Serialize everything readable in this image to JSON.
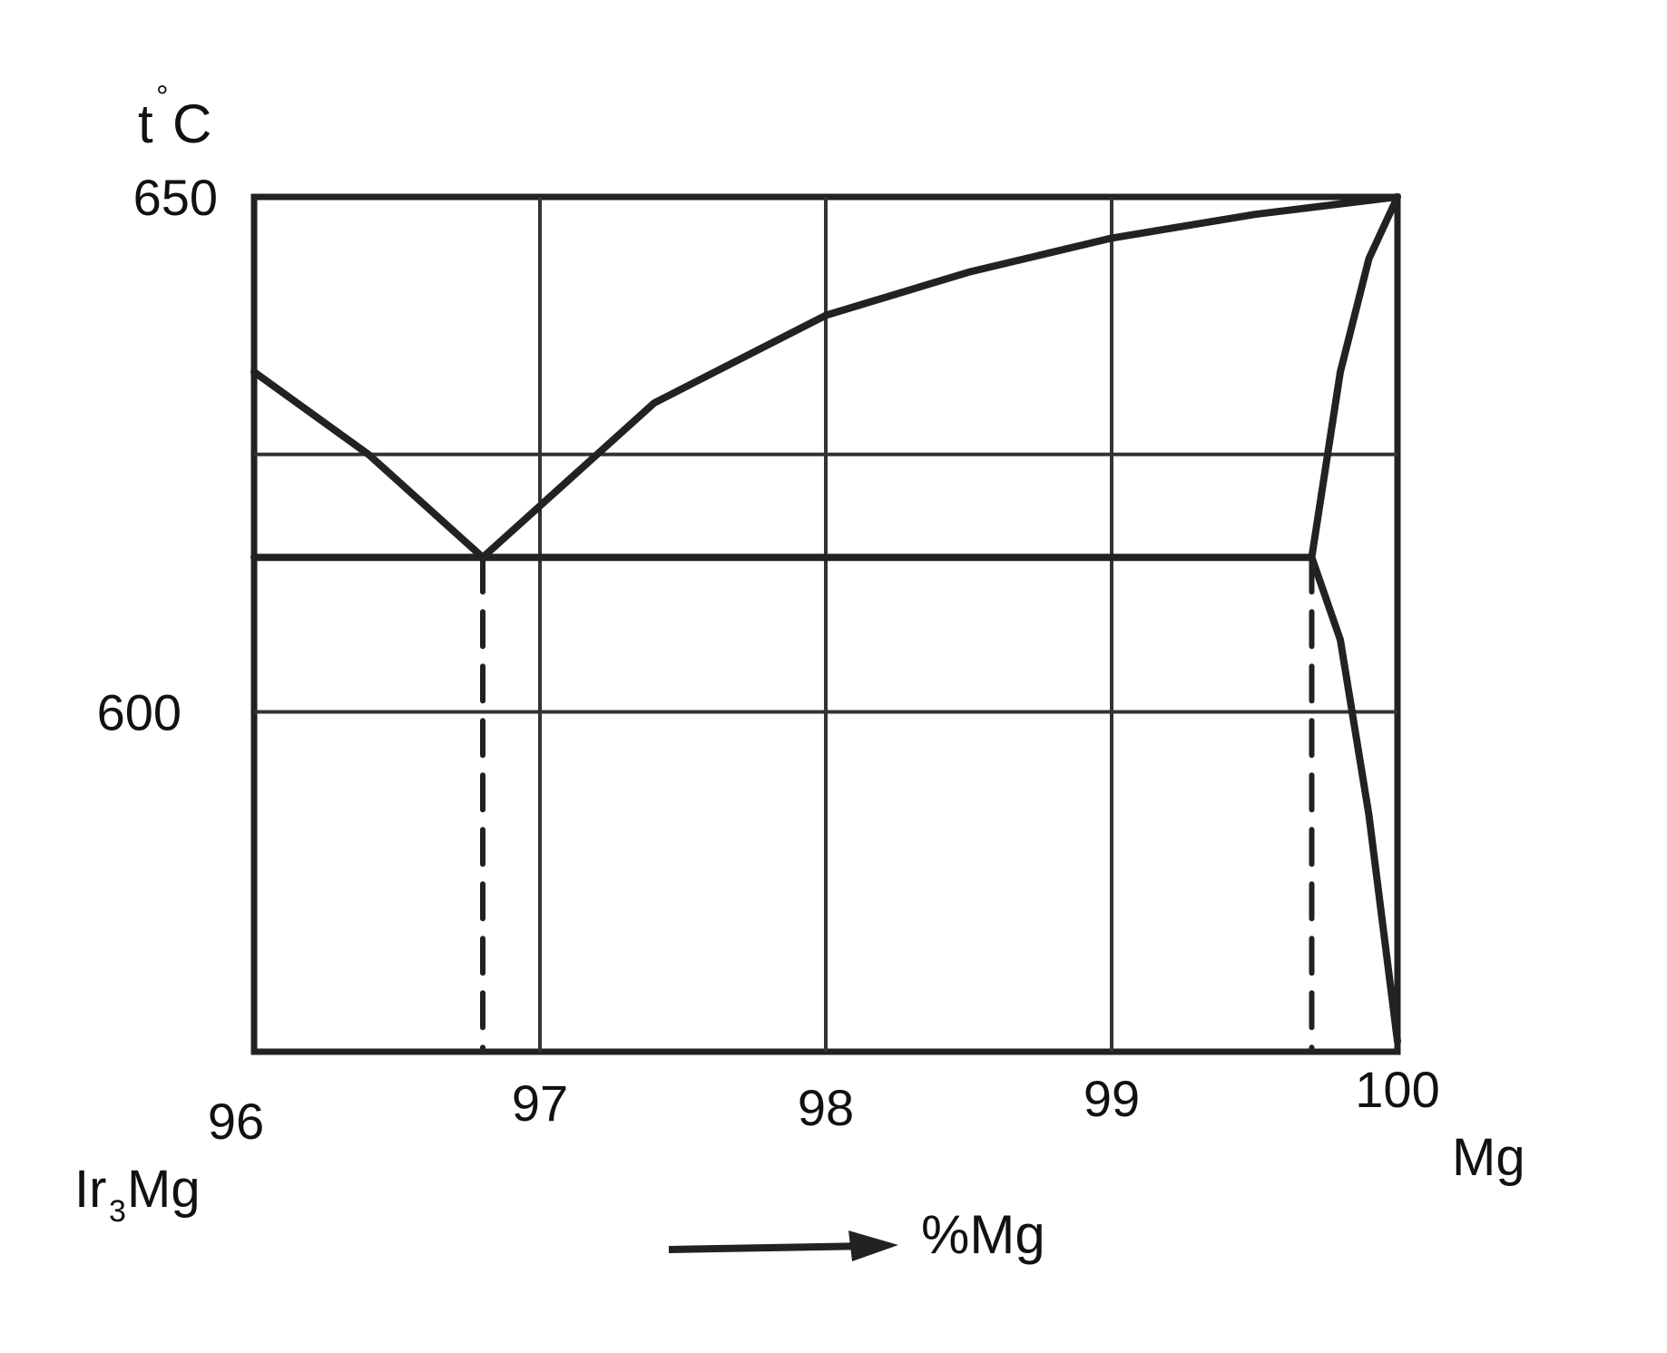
{
  "chart_data": {
    "type": "line",
    "title": "",
    "ylabel": "t°C",
    "xlabel": "%Mg",
    "x_left_label": "Ir3Mg",
    "x_right_label": "Mg",
    "xlim": [
      96,
      100
    ],
    "ylim": [
      567,
      650
    ],
    "grid": true,
    "x_ticks": [
      96,
      97,
      98,
      99,
      100
    ],
    "x_tick_labels": [
      "96",
      "97",
      "98",
      "99",
      "100"
    ],
    "y_ticks": [
      600,
      650
    ],
    "y_tick_labels": [
      "600",
      "650"
    ],
    "grid_y": [
      600,
      625,
      650
    ],
    "series": [
      {
        "values": [
          [
            96.0,
            633
          ],
          [
            96.4,
            625
          ],
          [
            96.8,
            615
          ]
        ]
      },
      {
        "values": [
          [
            96.8,
            615
          ],
          [
            97.0,
            620
          ],
          [
            97.4,
            630
          ],
          [
            98.0,
            638.5
          ],
          [
            98.5,
            642.7
          ],
          [
            99.0,
            646
          ],
          [
            99.5,
            648.3
          ],
          [
            100.0,
            650
          ]
        ]
      },
      {
        "values": [
          [
            96.0,
            615
          ],
          [
            99.7,
            615
          ]
        ]
      },
      {
        "values": [
          [
            100.0,
            650
          ],
          [
            99.9,
            644
          ],
          [
            99.8,
            633
          ],
          [
            99.7,
            615
          ]
        ]
      },
      {
        "values": [
          [
            99.7,
            615
          ],
          [
            99.8,
            607
          ],
          [
            99.9,
            590
          ],
          [
            100.0,
            568
          ]
        ]
      },
      {
        "values": [
          [
            96.8,
            615
          ],
          [
            96.8,
            567
          ]
        ]
      },
      {
        "values": [
          [
            99.7,
            615
          ],
          [
            99.7,
            567
          ]
        ]
      }
    ],
    "line_color": "#222222"
  }
}
